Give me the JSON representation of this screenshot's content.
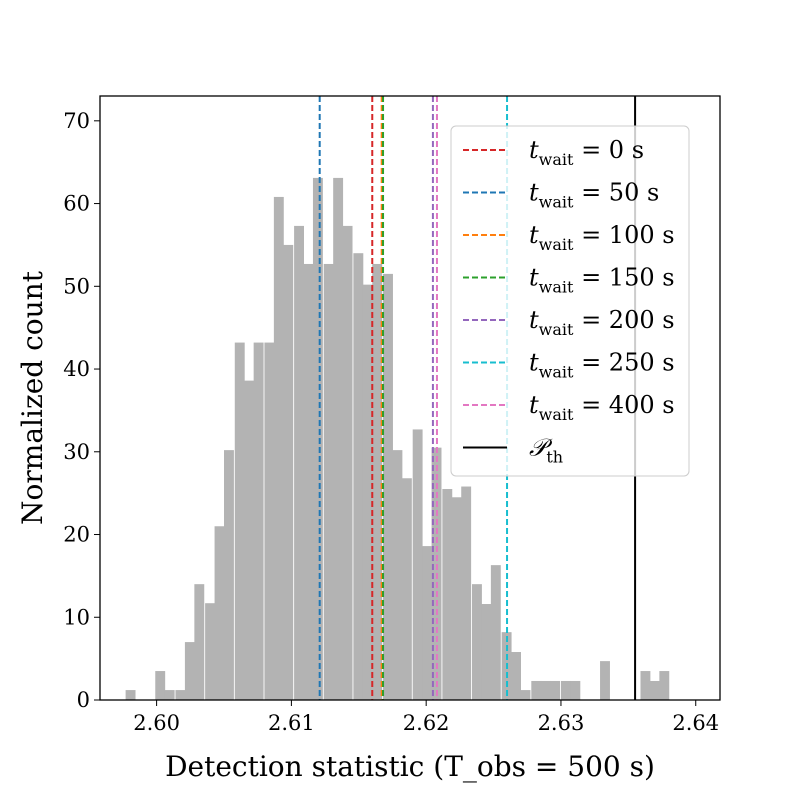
{
  "chart_data": {
    "type": "histogram",
    "xlabel": "Detection statistic (T_obs = 500 s)",
    "ylabel": "Normalized count",
    "xlim": [
      2.5958,
      2.6418
    ],
    "ylim": [
      0,
      73
    ],
    "xticks": [
      {
        "value": 2.6,
        "label": "2.60"
      },
      {
        "value": 2.61,
        "label": "2.61"
      },
      {
        "value": 2.62,
        "label": "2.62"
      },
      {
        "value": 2.63,
        "label": "2.63"
      },
      {
        "value": 2.64,
        "label": "2.64"
      }
    ],
    "yticks": [
      {
        "value": 0,
        "label": "0"
      },
      {
        "value": 10,
        "label": "10"
      },
      {
        "value": 20,
        "label": "20"
      },
      {
        "value": 30,
        "label": "30"
      },
      {
        "value": 40,
        "label": "40"
      },
      {
        "value": 50,
        "label": "50"
      },
      {
        "value": 60,
        "label": "60"
      },
      {
        "value": 70,
        "label": "70"
      }
    ],
    "bar_color": "#b3b3b3",
    "bin_width": 0.000735,
    "bin_starts": [
      2.5977,
      2.5984,
      2.5999,
      2.6006,
      2.6014,
      2.6021,
      2.6028,
      2.6036,
      2.6043,
      2.605,
      2.6058,
      2.6065,
      2.6072,
      2.608,
      2.6087,
      2.6094,
      2.6102,
      2.6109,
      2.6116,
      2.6124,
      2.6131,
      2.6138,
      2.6146,
      2.6153,
      2.616,
      2.6168,
      2.6175,
      2.6182,
      2.619,
      2.6197,
      2.6204,
      2.6212,
      2.6219,
      2.6226,
      2.6234,
      2.6241,
      2.6248,
      2.6256,
      2.6263,
      2.627,
      2.6278,
      2.6285,
      2.6292,
      2.63,
      2.6307,
      2.6314,
      2.6322,
      2.6329,
      2.6336,
      2.6344,
      2.6351,
      2.6359,
      2.6366,
      2.6373,
      2.6381,
      2.6388,
      2.6395,
      2.6402
    ],
    "values": [
      1.2,
      0,
      3.5,
      1.2,
      1.2,
      7,
      14,
      11.7,
      21,
      30.2,
      43.2,
      38.6,
      43.2,
      43.2,
      60.8,
      55,
      57.3,
      52.7,
      63.1,
      52.7,
      63.1,
      57.3,
      54,
      50.2,
      52.7,
      51.5,
      30.2,
      26.8,
      32.7,
      18.6,
      30.5,
      25.5,
      24.5,
      25.8,
      14,
      11.6,
      16.3,
      8.2,
      5.8,
      1.2,
      2.3,
      2.3,
      2.3,
      2.3,
      2.3,
      0,
      0,
      4.7,
      0,
      0,
      0,
      3.5,
      2.3,
      3.5,
      0,
      0,
      0,
      0
    ],
    "vlines": [
      {
        "name": "t_wait = 0 s",
        "x": 2.616,
        "color": "#d62728",
        "style": "dashed"
      },
      {
        "name": "t_wait = 50 s",
        "x": 2.6121,
        "color": "#1f77b4",
        "style": "dashed"
      },
      {
        "name": "t_wait = 100 s",
        "x": 2.6167,
        "color": "#ff7f0e",
        "style": "dashed"
      },
      {
        "name": "t_wait = 150 s",
        "x": 2.6168,
        "color": "#2ca02c",
        "style": "dashed"
      },
      {
        "name": "t_wait = 200 s",
        "x": 2.6205,
        "color": "#9467bd",
        "style": "dashed"
      },
      {
        "name": "t_wait = 250 s",
        "x": 2.626,
        "color": "#17becf",
        "style": "dashed"
      },
      {
        "name": "t_wait = 400 s",
        "x": 2.6208,
        "color": "#e377c2",
        "style": "dashed"
      },
      {
        "name": "P_th",
        "x": 2.6355,
        "color": "#000000",
        "style": "solid"
      }
    ],
    "legend": {
      "placement": "top-right",
      "entries": [
        {
          "main": "t",
          "sub": "wait",
          "rest": " = 0 s",
          "color": "#d62728",
          "style": "dashed"
        },
        {
          "main": "t",
          "sub": "wait",
          "rest": " = 50 s",
          "color": "#1f77b4",
          "style": "dashed"
        },
        {
          "main": "t",
          "sub": "wait",
          "rest": " = 100 s",
          "color": "#ff7f0e",
          "style": "dashed"
        },
        {
          "main": "t",
          "sub": "wait",
          "rest": " = 150 s",
          "color": "#2ca02c",
          "style": "dashed"
        },
        {
          "main": "t",
          "sub": "wait",
          "rest": " = 200 s",
          "color": "#9467bd",
          "style": "dashed"
        },
        {
          "main": "t",
          "sub": "wait",
          "rest": " = 250 s",
          "color": "#17becf",
          "style": "dashed"
        },
        {
          "main": "t",
          "sub": "wait",
          "rest": " = 400 s",
          "color": "#e377c2",
          "style": "dashed"
        },
        {
          "main": "𝒫",
          "sub": "th",
          "rest": "",
          "color": "#000000",
          "style": "solid"
        }
      ]
    }
  }
}
